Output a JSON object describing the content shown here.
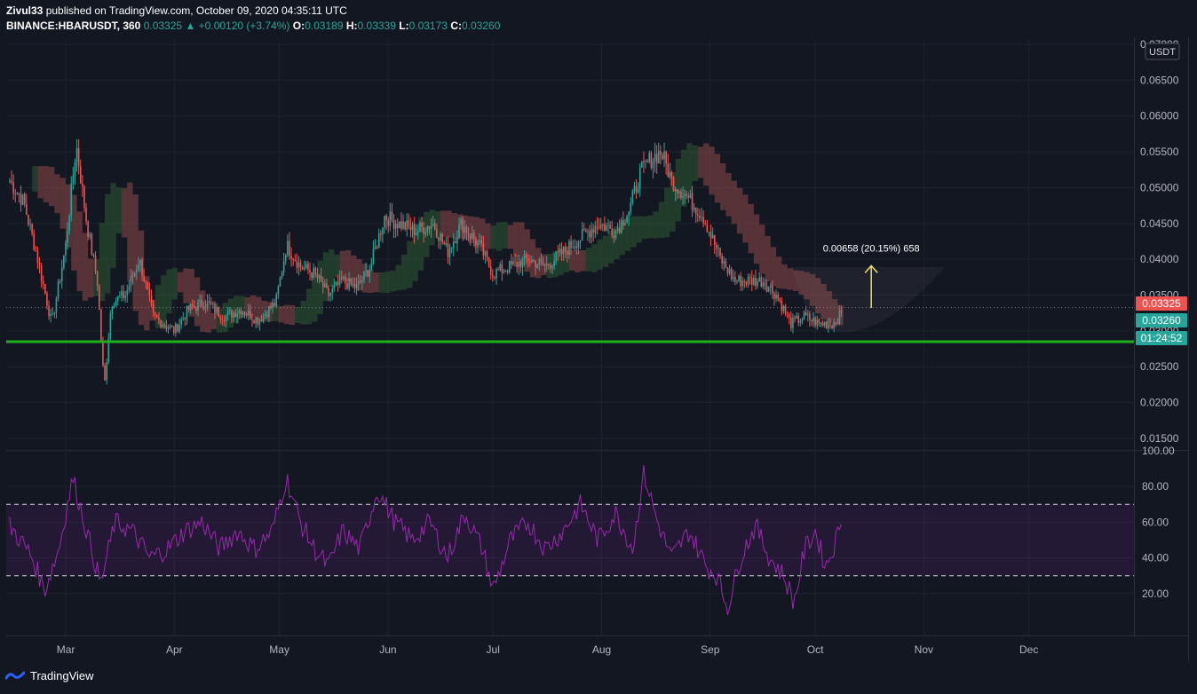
{
  "header": {
    "author": "Zivul33",
    "published_text": "published on TradingView.com, October 09, 2020 04:35:11 UTC",
    "symbol": "BINANCE:HBARUSDT, 360",
    "last": "0.03325",
    "change": "+0.00120 (+3.74%)",
    "o_label": "O:",
    "o": "0.03189",
    "h_label": "H:",
    "h": "0.03339",
    "l_label": "L:",
    "l": "0.03173",
    "c_label": "C:",
    "c": "0.03260"
  },
  "currency_label": "USDT",
  "price_tags": {
    "last": "0.03325",
    "close": "0.03260",
    "countdown": "01:24:52"
  },
  "measure_label": "0.00658 (20.15%) 658",
  "footer": {
    "brand": "TradingView"
  },
  "colors": {
    "background": "#131722",
    "up": "#26a69a",
    "down": "#ef5350",
    "support_line": "#1fb01f",
    "rsi": "#9c27b0",
    "measure_arrow": "#f0e070"
  },
  "chart_data": [
    {
      "type": "candlestick",
      "title": "BINANCE:HBARUSDT, 360",
      "y_axis_labels": [
        "0.07000",
        "0.06500",
        "0.06000",
        "0.05500",
        "0.05000",
        "0.04500",
        "0.04000",
        "0.03500",
        "0.03000",
        "0.02500",
        "0.02000",
        "0.01500"
      ],
      "x_axis_labels": [
        "Mar",
        "Apr",
        "May",
        "Jun",
        "Jul",
        "Aug",
        "Sep",
        "Oct",
        "Nov",
        "Dec"
      ],
      "ylim": [
        0.0135,
        0.0705
      ],
      "support_level": 0.0285,
      "price_path": [
        {
          "x": "2020-02-14",
          "y": 0.051
        },
        {
          "x": "2020-02-18",
          "y": 0.048
        },
        {
          "x": "2020-02-22",
          "y": 0.04
        },
        {
          "x": "2020-02-26",
          "y": 0.031
        },
        {
          "x": "2020-03-01",
          "y": 0.042
        },
        {
          "x": "2020-03-04",
          "y": 0.056
        },
        {
          "x": "2020-03-07",
          "y": 0.045
        },
        {
          "x": "2020-03-10",
          "y": 0.037
        },
        {
          "x": "2020-03-12",
          "y": 0.022
        },
        {
          "x": "2020-03-14",
          "y": 0.034
        },
        {
          "x": "2020-03-18",
          "y": 0.035
        },
        {
          "x": "2020-03-22",
          "y": 0.04
        },
        {
          "x": "2020-03-26",
          "y": 0.032
        },
        {
          "x": "2020-04-01",
          "y": 0.03
        },
        {
          "x": "2020-04-05",
          "y": 0.033
        },
        {
          "x": "2020-04-10",
          "y": 0.034
        },
        {
          "x": "2020-04-15",
          "y": 0.032
        },
        {
          "x": "2020-04-20",
          "y": 0.033
        },
        {
          "x": "2020-04-25",
          "y": 0.0315
        },
        {
          "x": "2020-04-30",
          "y": 0.034
        },
        {
          "x": "2020-05-03",
          "y": 0.042
        },
        {
          "x": "2020-05-07",
          "y": 0.039
        },
        {
          "x": "2020-05-11",
          "y": 0.038
        },
        {
          "x": "2020-05-15",
          "y": 0.035
        },
        {
          "x": "2020-05-19",
          "y": 0.037
        },
        {
          "x": "2020-05-23",
          "y": 0.036
        },
        {
          "x": "2020-05-27",
          "y": 0.039
        },
        {
          "x": "2020-05-31",
          "y": 0.046
        },
        {
          "x": "2020-06-04",
          "y": 0.045
        },
        {
          "x": "2020-06-09",
          "y": 0.044
        },
        {
          "x": "2020-06-14",
          "y": 0.045
        },
        {
          "x": "2020-06-18",
          "y": 0.041
        },
        {
          "x": "2020-06-22",
          "y": 0.045
        },
        {
          "x": "2020-06-27",
          "y": 0.042
        },
        {
          "x": "2020-07-01",
          "y": 0.038
        },
        {
          "x": "2020-07-06",
          "y": 0.039
        },
        {
          "x": "2020-07-11",
          "y": 0.04
        },
        {
          "x": "2020-07-16",
          "y": 0.039
        },
        {
          "x": "2020-07-21",
          "y": 0.041
        },
        {
          "x": "2020-07-26",
          "y": 0.043
        },
        {
          "x": "2020-07-31",
          "y": 0.045
        },
        {
          "x": "2020-08-05",
          "y": 0.044
        },
        {
          "x": "2020-08-09",
          "y": 0.047
        },
        {
          "x": "2020-08-12",
          "y": 0.052
        },
        {
          "x": "2020-08-15",
          "y": 0.054
        },
        {
          "x": "2020-08-18",
          "y": 0.055
        },
        {
          "x": "2020-08-21",
          "y": 0.051
        },
        {
          "x": "2020-08-25",
          "y": 0.049
        },
        {
          "x": "2020-08-30",
          "y": 0.046
        },
        {
          "x": "2020-09-04",
          "y": 0.04
        },
        {
          "x": "2020-09-08",
          "y": 0.037
        },
        {
          "x": "2020-09-12",
          "y": 0.037
        },
        {
          "x": "2020-09-16",
          "y": 0.037
        },
        {
          "x": "2020-09-20",
          "y": 0.035
        },
        {
          "x": "2020-09-24",
          "y": 0.031
        },
        {
          "x": "2020-09-28",
          "y": 0.032
        },
        {
          "x": "2020-10-02",
          "y": 0.031
        },
        {
          "x": "2020-10-06",
          "y": 0.031
        },
        {
          "x": "2020-10-09",
          "y": 0.0326
        }
      ]
    },
    {
      "type": "line",
      "title": "RSI",
      "y_axis_labels": [
        "100.00",
        "80.00",
        "60.00",
        "40.00",
        "20.00"
      ],
      "ylim": [
        0,
        100
      ],
      "bands": [
        30,
        70
      ],
      "values": [
        {
          "x": "2020-02-14",
          "y": 58
        },
        {
          "x": "2020-02-20",
          "y": 42
        },
        {
          "x": "2020-02-24",
          "y": 22
        },
        {
          "x": "2020-02-28",
          "y": 45
        },
        {
          "x": "2020-03-03",
          "y": 85
        },
        {
          "x": "2020-03-07",
          "y": 55
        },
        {
          "x": "2020-03-11",
          "y": 25
        },
        {
          "x": "2020-03-15",
          "y": 60
        },
        {
          "x": "2020-03-20",
          "y": 55
        },
        {
          "x": "2020-03-25",
          "y": 40
        },
        {
          "x": "2020-03-30",
          "y": 45
        },
        {
          "x": "2020-04-04",
          "y": 55
        },
        {
          "x": "2020-04-09",
          "y": 60
        },
        {
          "x": "2020-04-14",
          "y": 45
        },
        {
          "x": "2020-04-19",
          "y": 55
        },
        {
          "x": "2020-04-24",
          "y": 45
        },
        {
          "x": "2020-04-29",
          "y": 55
        },
        {
          "x": "2020-05-03",
          "y": 85
        },
        {
          "x": "2020-05-07",
          "y": 60
        },
        {
          "x": "2020-05-11",
          "y": 45
        },
        {
          "x": "2020-05-15",
          "y": 35
        },
        {
          "x": "2020-05-19",
          "y": 55
        },
        {
          "x": "2020-05-24",
          "y": 45
        },
        {
          "x": "2020-05-29",
          "y": 78
        },
        {
          "x": "2020-06-03",
          "y": 60
        },
        {
          "x": "2020-06-08",
          "y": 50
        },
        {
          "x": "2020-06-13",
          "y": 60
        },
        {
          "x": "2020-06-18",
          "y": 40
        },
        {
          "x": "2020-06-23",
          "y": 65
        },
        {
          "x": "2020-06-28",
          "y": 45
        },
        {
          "x": "2020-07-01",
          "y": 22
        },
        {
          "x": "2020-07-06",
          "y": 50
        },
        {
          "x": "2020-07-11",
          "y": 60
        },
        {
          "x": "2020-07-16",
          "y": 45
        },
        {
          "x": "2020-07-21",
          "y": 55
        },
        {
          "x": "2020-07-26",
          "y": 70
        },
        {
          "x": "2020-07-31",
          "y": 50
        },
        {
          "x": "2020-08-05",
          "y": 65
        },
        {
          "x": "2020-08-10",
          "y": 45
        },
        {
          "x": "2020-08-13",
          "y": 88
        },
        {
          "x": "2020-08-17",
          "y": 60
        },
        {
          "x": "2020-08-21",
          "y": 40
        },
        {
          "x": "2020-08-26",
          "y": 55
        },
        {
          "x": "2020-08-31",
          "y": 35
        },
        {
          "x": "2020-09-03",
          "y": 30
        },
        {
          "x": "2020-09-06",
          "y": 12
        },
        {
          "x": "2020-09-10",
          "y": 42
        },
        {
          "x": "2020-09-14",
          "y": 58
        },
        {
          "x": "2020-09-18",
          "y": 40
        },
        {
          "x": "2020-09-22",
          "y": 30
        },
        {
          "x": "2020-09-25",
          "y": 15
        },
        {
          "x": "2020-09-28",
          "y": 45
        },
        {
          "x": "2020-10-01",
          "y": 55
        },
        {
          "x": "2020-10-04",
          "y": 35
        },
        {
          "x": "2020-10-07",
          "y": 50
        },
        {
          "x": "2020-10-09",
          "y": 68
        }
      ]
    }
  ]
}
